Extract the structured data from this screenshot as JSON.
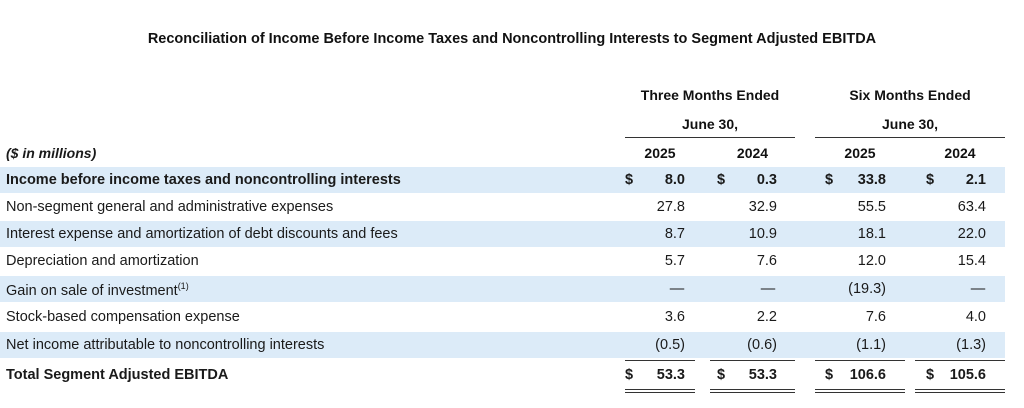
{
  "title": "Reconciliation of Income Before Income Taxes and Noncontrolling Interests to Segment Adjusted EBITDA",
  "headers": {
    "three_months_line1": "Three Months Ended",
    "three_months_line2": "June 30,",
    "six_months_line1": "Six Months Ended",
    "six_months_line2": "June 30,",
    "units": "($ in millions)",
    "years": [
      "2025",
      "2024",
      "2025",
      "2024"
    ]
  },
  "rows": [
    {
      "label": "Income before income taxes and noncontrolling interests",
      "footnote": "",
      "bold": true,
      "shaded": true,
      "dollar": "$",
      "values": [
        "8.0",
        "0.3",
        "33.8",
        "2.1"
      ]
    },
    {
      "label": "Non-segment general and administrative expenses",
      "footnote": "",
      "bold": false,
      "shaded": false,
      "dollar": "",
      "values": [
        "27.8",
        "32.9",
        "55.5",
        "63.4"
      ]
    },
    {
      "label": "Interest expense and amortization of debt discounts and fees",
      "footnote": "",
      "bold": false,
      "shaded": true,
      "dollar": "",
      "values": [
        "8.7",
        "10.9",
        "18.1",
        "22.0"
      ]
    },
    {
      "label": "Depreciation and amortization",
      "footnote": "",
      "bold": false,
      "shaded": false,
      "dollar": "",
      "values": [
        "5.7",
        "7.6",
        "12.0",
        "15.4"
      ]
    },
    {
      "label": "Gain on sale of investment",
      "footnote": "(1)",
      "bold": false,
      "shaded": true,
      "dollar": "",
      "values": [
        "—",
        "—",
        "(19.3)",
        "—"
      ]
    },
    {
      "label": "Stock-based compensation expense",
      "footnote": "",
      "bold": false,
      "shaded": false,
      "dollar": "",
      "values": [
        "3.6",
        "2.2",
        "7.6",
        "4.0"
      ]
    },
    {
      "label": "Net income attributable to noncontrolling interests",
      "footnote": "",
      "bold": false,
      "shaded": true,
      "dollar": "",
      "values": [
        "(0.5)",
        "(0.6)",
        "(1.1)",
        "(1.3)"
      ]
    },
    {
      "label": "Total Segment Adjusted EBITDA",
      "footnote": "",
      "bold": true,
      "shaded": false,
      "dollar": "$",
      "values": [
        "53.3",
        "53.3",
        "106.6",
        "105.6"
      ]
    }
  ],
  "colors": {
    "row_shade": "#dcebf8",
    "rule": "#333333"
  }
}
